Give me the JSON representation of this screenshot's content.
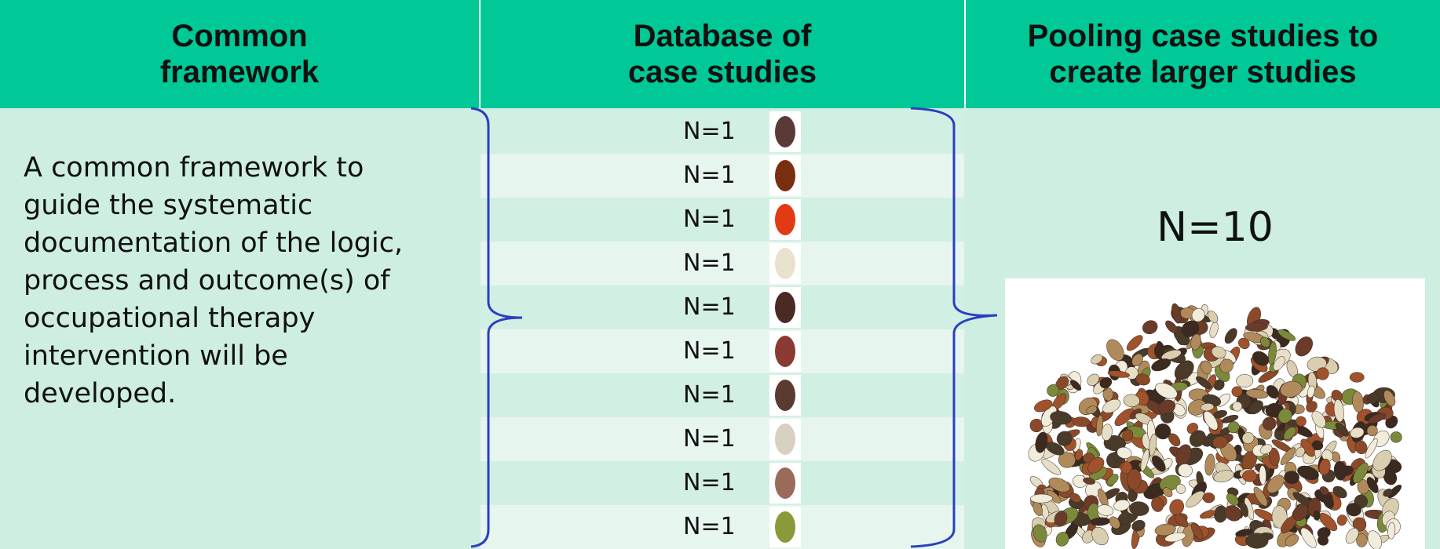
{
  "headers": [
    [
      "Common",
      "framework"
    ],
    [
      "Database of",
      "case studies"
    ],
    [
      "Pooling case studies to",
      "create larger studies"
    ]
  ],
  "description": [
    "A common framework  to",
    "guide the systematic",
    "documentation of the logic,",
    "process and outcome(s) of",
    "occupational therapy",
    "intervention  will  be",
    "developed."
  ],
  "case_rows": [
    "N=1",
    "N=1",
    "N=1",
    "N=1",
    "N=1",
    "N=1",
    "N=1",
    "N=1",
    "N=1",
    "N=1"
  ],
  "pooled": "N=10"
}
